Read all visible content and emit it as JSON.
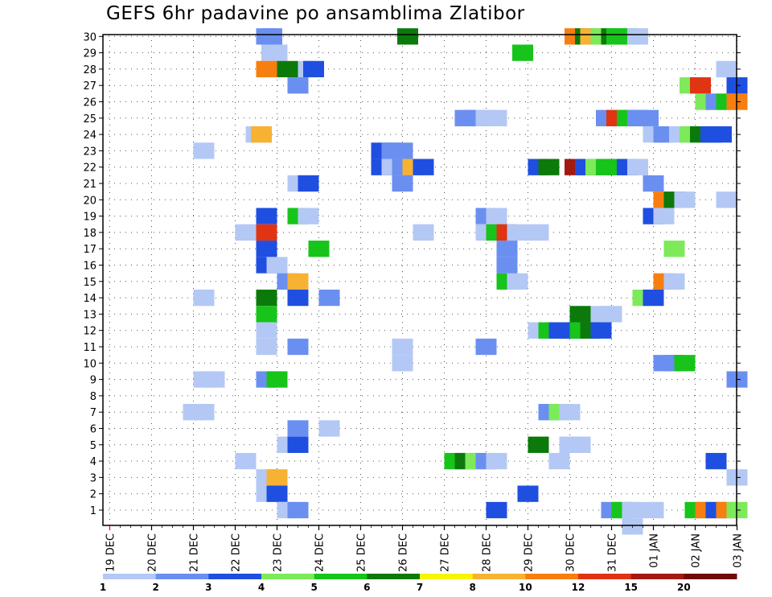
{
  "chart_data": {
    "type": "heatmap",
    "title": "GEFS 6hr padavine po ansamblima Zlatibor",
    "y_members": [
      "1",
      "2",
      "3",
      "4",
      "5",
      "6",
      "7",
      "8",
      "9",
      "10",
      "11",
      "12",
      "13",
      "14",
      "15",
      "16",
      "17",
      "18",
      "19",
      "20",
      "21",
      "22",
      "23",
      "24",
      "25",
      "26",
      "27",
      "28",
      "29",
      "30"
    ],
    "x_day_labels": [
      "19 DEC",
      "20 DEC",
      "21 DEC",
      "22 DEC",
      "23 DEC",
      "24 DEC",
      "25 DEC",
      "26 DEC",
      "27 DEC",
      "28 DEC",
      "29 DEC",
      "30 DEC",
      "31 DEC",
      "01 JAN",
      "02 JAN",
      "03 JAN"
    ],
    "x_unit": "6-hour steps",
    "colorbar": {
      "levels": [
        "1",
        "2",
        "3",
        "4",
        "5",
        "6",
        "7",
        "8",
        "10",
        "12",
        "15",
        "20"
      ],
      "colors": [
        "#b4c8f5",
        "#6a8ff0",
        "#1f4fe0",
        "#7dea5a",
        "#17c41a",
        "#0b7a0b",
        "#f7f500",
        "#f7b233",
        "#f77e10",
        "#e03412",
        "#a31a10",
        "#6e0a0a"
      ]
    },
    "cells": [
      {
        "m": 30,
        "x": 15,
        "v": "2"
      },
      {
        "m": 30,
        "x": 15.5,
        "v": "2"
      },
      {
        "m": 30,
        "x": 28.5,
        "v": "6"
      },
      {
        "m": 30,
        "x": 44.5,
        "v": "10"
      },
      {
        "m": 30,
        "x": 45.5,
        "v": "6"
      },
      {
        "m": 30,
        "x": 46,
        "v": "8"
      },
      {
        "m": 30,
        "x": 47,
        "v": "4"
      },
      {
        "m": 30,
        "x": 48,
        "v": "6"
      },
      {
        "m": 30,
        "x": 48.5,
        "v": "5"
      },
      {
        "m": 30,
        "x": 49.5,
        "v": "5"
      },
      {
        "m": 30,
        "x": 50.5,
        "v": "1"
      },
      {
        "m": 29,
        "x": 15.5,
        "v": "1"
      },
      {
        "m": 29,
        "x": 16,
        "v": "1"
      },
      {
        "m": 29,
        "x": 39.5,
        "v": "5"
      },
      {
        "m": 28,
        "x": 15,
        "v": "10"
      },
      {
        "m": 28,
        "x": 17,
        "v": "6"
      },
      {
        "m": 28,
        "x": 19,
        "v": "1"
      },
      {
        "m": 28,
        "x": 19.5,
        "v": "3"
      },
      {
        "m": 28,
        "x": 59,
        "v": "1"
      },
      {
        "m": 27,
        "x": 18,
        "v": "2"
      },
      {
        "m": 27,
        "x": 55.5,
        "v": "4"
      },
      {
        "m": 27,
        "x": 56.5,
        "v": "12"
      },
      {
        "m": 27,
        "x": 60,
        "v": "3"
      },
      {
        "m": 26,
        "x": 57,
        "v": "4"
      },
      {
        "m": 26,
        "x": 58,
        "v": "2"
      },
      {
        "m": 26,
        "x": 59,
        "v": "5"
      },
      {
        "m": 26,
        "x": 60,
        "v": "10"
      },
      {
        "m": 25,
        "x": 34,
        "v": "2"
      },
      {
        "m": 25,
        "x": 35,
        "v": "2"
      },
      {
        "m": 25,
        "x": 36,
        "v": "1"
      },
      {
        "m": 25,
        "x": 37,
        "v": "1"
      },
      {
        "m": 25,
        "x": 47.5,
        "v": "2"
      },
      {
        "m": 25,
        "x": 48.5,
        "v": "12"
      },
      {
        "m": 25,
        "x": 49.5,
        "v": "5"
      },
      {
        "m": 25,
        "x": 50.5,
        "v": "2"
      },
      {
        "m": 25,
        "x": 51.5,
        "v": "2"
      },
      {
        "m": 24,
        "x": 14,
        "v": "1"
      },
      {
        "m": 24,
        "x": 14.5,
        "v": "8"
      },
      {
        "m": 24,
        "x": 52,
        "v": "1"
      },
      {
        "m": 24,
        "x": 53,
        "v": "2"
      },
      {
        "m": 24,
        "x": 54.5,
        "v": "1"
      },
      {
        "m": 24,
        "x": 55.5,
        "v": "4"
      },
      {
        "m": 24,
        "x": 56.5,
        "v": "6"
      },
      {
        "m": 24,
        "x": 57.5,
        "v": "3"
      },
      {
        "m": 24,
        "x": 58.5,
        "v": "3"
      },
      {
        "m": 23,
        "x": 9,
        "v": "1"
      },
      {
        "m": 23,
        "x": 26,
        "v": "3"
      },
      {
        "m": 23,
        "x": 27,
        "v": "2"
      },
      {
        "m": 23,
        "x": 28,
        "v": "2"
      },
      {
        "m": 22,
        "x": 26,
        "v": "3"
      },
      {
        "m": 22,
        "x": 27,
        "v": "1"
      },
      {
        "m": 22,
        "x": 28,
        "v": "2"
      },
      {
        "m": 22,
        "x": 29,
        "v": "8"
      },
      {
        "m": 22,
        "x": 30,
        "v": "3"
      },
      {
        "m": 22,
        "x": 41,
        "v": "3"
      },
      {
        "m": 22,
        "x": 42,
        "v": "6"
      },
      {
        "m": 22,
        "x": 44.5,
        "v": "15"
      },
      {
        "m": 22,
        "x": 45.5,
        "v": "3"
      },
      {
        "m": 22,
        "x": 46.5,
        "v": "4"
      },
      {
        "m": 22,
        "x": 47.5,
        "v": "5"
      },
      {
        "m": 22,
        "x": 48.5,
        "v": "5"
      },
      {
        "m": 22,
        "x": 49.5,
        "v": "3"
      },
      {
        "m": 22,
        "x": 50.5,
        "v": "1"
      },
      {
        "m": 21,
        "x": 18,
        "v": "1"
      },
      {
        "m": 21,
        "x": 19,
        "v": "3"
      },
      {
        "m": 21,
        "x": 28,
        "v": "2"
      },
      {
        "m": 21,
        "x": 52,
        "v": "2"
      },
      {
        "m": 20,
        "x": 53,
        "v": "10"
      },
      {
        "m": 20,
        "x": 54,
        "v": "6"
      },
      {
        "m": 20,
        "x": 55,
        "v": "1"
      },
      {
        "m": 20,
        "x": 59,
        "v": "1"
      },
      {
        "m": 19,
        "x": 15,
        "v": "3"
      },
      {
        "m": 19,
        "x": 18,
        "v": "5"
      },
      {
        "m": 19,
        "x": 19,
        "v": "1"
      },
      {
        "m": 19,
        "x": 36,
        "v": "2"
      },
      {
        "m": 19,
        "x": 37,
        "v": "1"
      },
      {
        "m": 19,
        "x": 52,
        "v": "3"
      },
      {
        "m": 19,
        "x": 53,
        "v": "1"
      },
      {
        "m": 18,
        "x": 13,
        "v": "1"
      },
      {
        "m": 18,
        "x": 15,
        "v": "12"
      },
      {
        "m": 18,
        "x": 30,
        "v": "1"
      },
      {
        "m": 18,
        "x": 36,
        "v": "1"
      },
      {
        "m": 18,
        "x": 37,
        "v": "5"
      },
      {
        "m": 18,
        "x": 38,
        "v": "12"
      },
      {
        "m": 18,
        "x": 39,
        "v": "1"
      },
      {
        "m": 18,
        "x": 41,
        "v": "1"
      },
      {
        "m": 17,
        "x": 15,
        "v": "3"
      },
      {
        "m": 17,
        "x": 20,
        "v": "5"
      },
      {
        "m": 17,
        "x": 38,
        "v": "2"
      },
      {
        "m": 17,
        "x": 54,
        "v": "4"
      },
      {
        "m": 16,
        "x": 15,
        "v": "3"
      },
      {
        "m": 16,
        "x": 16,
        "v": "1"
      },
      {
        "m": 16,
        "x": 38,
        "v": "2"
      },
      {
        "m": 15,
        "x": 17,
        "v": "2"
      },
      {
        "m": 15,
        "x": 18,
        "v": "8"
      },
      {
        "m": 15,
        "x": 38,
        "v": "5"
      },
      {
        "m": 15,
        "x": 39,
        "v": "1"
      },
      {
        "m": 15,
        "x": 53,
        "v": "10"
      },
      {
        "m": 15,
        "x": 54,
        "v": "1"
      },
      {
        "m": 14,
        "x": 9,
        "v": "1"
      },
      {
        "m": 14,
        "x": 15,
        "v": "6"
      },
      {
        "m": 14,
        "x": 18,
        "v": "3"
      },
      {
        "m": 14,
        "x": 21,
        "v": "2"
      },
      {
        "m": 14,
        "x": 51,
        "v": "4"
      },
      {
        "m": 14,
        "x": 52,
        "v": "3"
      },
      {
        "m": 13,
        "x": 15,
        "v": "5"
      },
      {
        "m": 13,
        "x": 45,
        "v": "6"
      },
      {
        "m": 13,
        "x": 47,
        "v": "1"
      },
      {
        "m": 13,
        "x": 48,
        "v": "1"
      },
      {
        "m": 12,
        "x": 15,
        "v": "1"
      },
      {
        "m": 12,
        "x": 41,
        "v": "1"
      },
      {
        "m": 12,
        "x": 42,
        "v": "5"
      },
      {
        "m": 12,
        "x": 43,
        "v": "3"
      },
      {
        "m": 12,
        "x": 44,
        "v": "3"
      },
      {
        "m": 12,
        "x": 45,
        "v": "5"
      },
      {
        "m": 12,
        "x": 46,
        "v": "6"
      },
      {
        "m": 12,
        "x": 47,
        "v": "3"
      },
      {
        "m": 11,
        "x": 15,
        "v": "1"
      },
      {
        "m": 11,
        "x": 18,
        "v": "2"
      },
      {
        "m": 11,
        "x": 28,
        "v": "1"
      },
      {
        "m": 11,
        "x": 36,
        "v": "2"
      },
      {
        "m": 10,
        "x": 28,
        "v": "1"
      },
      {
        "m": 10,
        "x": 53,
        "v": "2"
      },
      {
        "m": 10,
        "x": 54,
        "v": "2"
      },
      {
        "m": 10,
        "x": 55,
        "v": "5"
      },
      {
        "m": 9,
        "x": 9,
        "v": "1"
      },
      {
        "m": 9,
        "x": 10,
        "v": "1"
      },
      {
        "m": 9,
        "x": 15,
        "v": "2"
      },
      {
        "m": 9,
        "x": 16,
        "v": "5"
      },
      {
        "m": 9,
        "x": 60,
        "v": "2"
      },
      {
        "m": 7,
        "x": 8,
        "v": "1"
      },
      {
        "m": 7,
        "x": 9,
        "v": "1"
      },
      {
        "m": 7,
        "x": 42,
        "v": "2"
      },
      {
        "m": 7,
        "x": 43,
        "v": "4"
      },
      {
        "m": 7,
        "x": 44,
        "v": "1"
      },
      {
        "m": 6,
        "x": 18,
        "v": "2"
      },
      {
        "m": 6,
        "x": 21,
        "v": "1"
      },
      {
        "m": 5,
        "x": 17,
        "v": "1"
      },
      {
        "m": 5,
        "x": 18,
        "v": "3"
      },
      {
        "m": 5,
        "x": 41,
        "v": "6"
      },
      {
        "m": 5,
        "x": 44,
        "v": "1"
      },
      {
        "m": 5,
        "x": 45,
        "v": "1"
      },
      {
        "m": 4,
        "x": 13,
        "v": "1"
      },
      {
        "m": 4,
        "x": 33,
        "v": "5"
      },
      {
        "m": 4,
        "x": 34,
        "v": "6"
      },
      {
        "m": 4,
        "x": 35,
        "v": "4"
      },
      {
        "m": 4,
        "x": 36,
        "v": "2"
      },
      {
        "m": 4,
        "x": 37,
        "v": "1"
      },
      {
        "m": 4,
        "x": 43,
        "v": "1"
      },
      {
        "m": 4,
        "x": 58,
        "v": "3"
      },
      {
        "m": 3,
        "x": 15,
        "v": "1"
      },
      {
        "m": 3,
        "x": 16,
        "v": "8"
      },
      {
        "m": 3,
        "x": 60,
        "v": "1"
      },
      {
        "m": 2,
        "x": 15,
        "v": "1"
      },
      {
        "m": 2,
        "x": 16,
        "v": "3"
      },
      {
        "m": 2,
        "x": 40,
        "v": "3"
      },
      {
        "m": 1,
        "x": 17,
        "v": "1"
      },
      {
        "m": 1,
        "x": 18,
        "v": "2"
      },
      {
        "m": 1,
        "x": 37,
        "v": "3"
      },
      {
        "m": 1,
        "x": 48,
        "v": "2"
      },
      {
        "m": 1,
        "x": 49,
        "v": "5"
      },
      {
        "m": 1,
        "x": 50,
        "v": "1"
      },
      {
        "m": 1,
        "x": 52,
        "v": "1"
      },
      {
        "m": 1,
        "x": 56,
        "v": "5"
      },
      {
        "m": 1,
        "x": 57,
        "v": "10"
      },
      {
        "m": 1,
        "x": 58,
        "v": "3"
      },
      {
        "m": 1,
        "x": 59,
        "v": "10"
      },
      {
        "m": 1,
        "x": 60,
        "v": "4"
      },
      {
        "m": 0,
        "x": 50,
        "v": "1"
      }
    ]
  }
}
